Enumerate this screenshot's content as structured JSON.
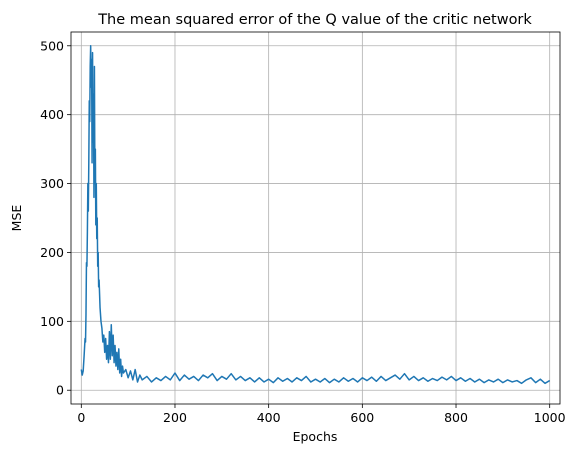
{
  "chart_data": {
    "type": "line",
    "title": "The mean squared error of the Q value of the critic network",
    "xlabel": "Epochs",
    "ylabel": "MSE",
    "xlim": [
      -22,
      1022
    ],
    "ylim": [
      -20,
      520
    ],
    "xticks": [
      0,
      200,
      400,
      600,
      800,
      1000
    ],
    "yticks": [
      0,
      100,
      200,
      300,
      400,
      500
    ],
    "grid": true,
    "series": [
      {
        "color": "#1f77b4",
        "points": [
          [
            0,
            30
          ],
          [
            2,
            22
          ],
          [
            4,
            28
          ],
          [
            6,
            50
          ],
          [
            8,
            75
          ],
          [
            9,
            70
          ],
          [
            10,
            110
          ],
          [
            11,
            185
          ],
          [
            12,
            180
          ],
          [
            13,
            230
          ],
          [
            14,
            300
          ],
          [
            15,
            260
          ],
          [
            16,
            330
          ],
          [
            17,
            420
          ],
          [
            18,
            390
          ],
          [
            19,
            470
          ],
          [
            20,
            500
          ],
          [
            21,
            440
          ],
          [
            22,
            480
          ],
          [
            23,
            330
          ],
          [
            24,
            490
          ],
          [
            25,
            360
          ],
          [
            26,
            430
          ],
          [
            27,
            280
          ],
          [
            28,
            470
          ],
          [
            29,
            300
          ],
          [
            30,
            350
          ],
          [
            31,
            240
          ],
          [
            32,
            300
          ],
          [
            33,
            220
          ],
          [
            34,
            250
          ],
          [
            35,
            180
          ],
          [
            36,
            200
          ],
          [
            37,
            150
          ],
          [
            38,
            160
          ],
          [
            40,
            120
          ],
          [
            42,
            100
          ],
          [
            44,
            90
          ],
          [
            46,
            70
          ],
          [
            48,
            80
          ],
          [
            50,
            55
          ],
          [
            52,
            75
          ],
          [
            54,
            45
          ],
          [
            56,
            65
          ],
          [
            58,
            40
          ],
          [
            60,
            85
          ],
          [
            62,
            45
          ],
          [
            64,
            95
          ],
          [
            66,
            50
          ],
          [
            68,
            80
          ],
          [
            70,
            40
          ],
          [
            72,
            65
          ],
          [
            74,
            35
          ],
          [
            76,
            55
          ],
          [
            78,
            30
          ],
          [
            80,
            60
          ],
          [
            82,
            25
          ],
          [
            84,
            45
          ],
          [
            86,
            20
          ],
          [
            88,
            35
          ],
          [
            90,
            25
          ],
          [
            95,
            30
          ],
          [
            100,
            18
          ],
          [
            105,
            28
          ],
          [
            110,
            15
          ],
          [
            115,
            30
          ],
          [
            120,
            12
          ],
          [
            125,
            22
          ],
          [
            130,
            15
          ],
          [
            140,
            20
          ],
          [
            150,
            12
          ],
          [
            160,
            18
          ],
          [
            170,
            14
          ],
          [
            180,
            20
          ],
          [
            190,
            15
          ],
          [
            200,
            25
          ],
          [
            210,
            14
          ],
          [
            220,
            22
          ],
          [
            230,
            16
          ],
          [
            240,
            20
          ],
          [
            250,
            14
          ],
          [
            260,
            22
          ],
          [
            270,
            18
          ],
          [
            280,
            24
          ],
          [
            290,
            14
          ],
          [
            300,
            20
          ],
          [
            310,
            16
          ],
          [
            320,
            24
          ],
          [
            330,
            15
          ],
          [
            340,
            20
          ],
          [
            350,
            14
          ],
          [
            360,
            18
          ],
          [
            370,
            12
          ],
          [
            380,
            18
          ],
          [
            390,
            12
          ],
          [
            400,
            16
          ],
          [
            410,
            11
          ],
          [
            420,
            18
          ],
          [
            430,
            13
          ],
          [
            440,
            17
          ],
          [
            450,
            12
          ],
          [
            460,
            18
          ],
          [
            470,
            14
          ],
          [
            480,
            20
          ],
          [
            490,
            12
          ],
          [
            500,
            16
          ],
          [
            510,
            12
          ],
          [
            520,
            17
          ],
          [
            530,
            11
          ],
          [
            540,
            16
          ],
          [
            550,
            12
          ],
          [
            560,
            18
          ],
          [
            570,
            13
          ],
          [
            580,
            17
          ],
          [
            590,
            12
          ],
          [
            600,
            18
          ],
          [
            610,
            14
          ],
          [
            620,
            19
          ],
          [
            630,
            13
          ],
          [
            640,
            20
          ],
          [
            650,
            14
          ],
          [
            660,
            18
          ],
          [
            670,
            22
          ],
          [
            680,
            16
          ],
          [
            690,
            24
          ],
          [
            700,
            15
          ],
          [
            710,
            20
          ],
          [
            720,
            14
          ],
          [
            730,
            18
          ],
          [
            740,
            13
          ],
          [
            750,
            17
          ],
          [
            760,
            14
          ],
          [
            770,
            19
          ],
          [
            780,
            15
          ],
          [
            790,
            20
          ],
          [
            800,
            14
          ],
          [
            810,
            18
          ],
          [
            820,
            13
          ],
          [
            830,
            17
          ],
          [
            840,
            12
          ],
          [
            850,
            16
          ],
          [
            860,
            11
          ],
          [
            870,
            15
          ],
          [
            880,
            12
          ],
          [
            890,
            16
          ],
          [
            900,
            11
          ],
          [
            910,
            15
          ],
          [
            920,
            12
          ],
          [
            930,
            14
          ],
          [
            940,
            10
          ],
          [
            950,
            15
          ],
          [
            960,
            18
          ],
          [
            970,
            11
          ],
          [
            980,
            16
          ],
          [
            990,
            10
          ],
          [
            1000,
            14
          ]
        ]
      }
    ]
  }
}
